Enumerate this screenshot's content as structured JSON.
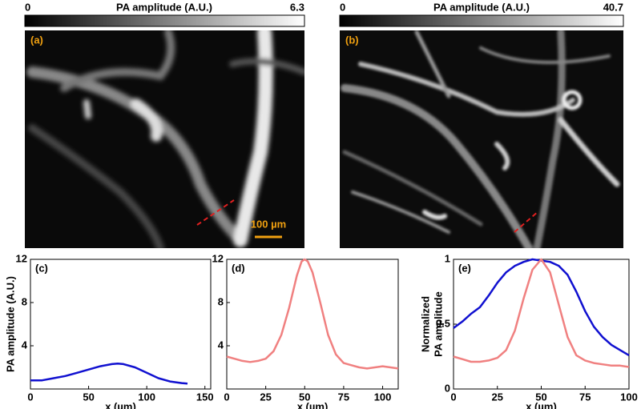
{
  "images": [
    {
      "label": "(a)",
      "colorbar": {
        "title": "PA amplitude (A.U.)",
        "min": 0,
        "max": 6.3
      },
      "scale_bar": "100 µm"
    },
    {
      "label": "(b)",
      "colorbar": {
        "title": "PA amplitude (A.U.)",
        "min": 0,
        "max": 40.7
      }
    }
  ],
  "chart_data": [
    {
      "type": "line",
      "panel_label": "(c)",
      "xlabel": "x (µm)",
      "ylabel": "PA amplitude (A.U.)",
      "xlim": [
        0,
        155
      ],
      "ylim": [
        0,
        12
      ],
      "xticks": [
        0,
        50,
        100,
        150
      ],
      "yticks": [
        4,
        8,
        12
      ],
      "x": [
        0,
        10,
        20,
        30,
        40,
        50,
        60,
        70,
        75,
        80,
        90,
        100,
        110,
        120,
        130,
        135
      ],
      "series": [
        {
          "color": "#1010d0",
          "values": [
            0.8,
            0.8,
            1.0,
            1.2,
            1.5,
            1.8,
            2.1,
            2.3,
            2.35,
            2.3,
            2.0,
            1.5,
            1.0,
            0.7,
            0.55,
            0.5
          ]
        }
      ]
    },
    {
      "type": "line",
      "panel_label": "(d)",
      "xlabel": "x (µm)",
      "xlim": [
        0,
        110
      ],
      "ylim": [
        0,
        12
      ],
      "xticks": [
        0,
        25,
        50,
        75,
        100
      ],
      "yticks": [
        4,
        8,
        12
      ],
      "x": [
        0,
        5,
        10,
        15,
        20,
        25,
        30,
        35,
        40,
        45,
        48,
        50,
        52,
        55,
        60,
        65,
        70,
        75,
        80,
        85,
        90,
        95,
        100,
        105,
        110
      ],
      "series": [
        {
          "color": "#f08080",
          "values": [
            3.0,
            2.8,
            2.6,
            2.5,
            2.6,
            2.8,
            3.5,
            5.0,
            7.5,
            10.5,
            11.8,
            12.0,
            11.8,
            10.8,
            8.0,
            5.0,
            3.2,
            2.4,
            2.2,
            2.0,
            1.9,
            2.0,
            2.1,
            2.0,
            1.9
          ]
        }
      ]
    },
    {
      "type": "line",
      "panel_label": "(e)",
      "xlabel": "x (µm)",
      "ylabel": [
        "Normalized",
        "PA amplitude"
      ],
      "xlim": [
        0,
        100
      ],
      "ylim": [
        0,
        1
      ],
      "xticks": [
        0,
        25,
        50,
        75,
        100
      ],
      "yticks": [
        0,
        0.5,
        1
      ],
      "x": [
        0,
        5,
        10,
        15,
        20,
        25,
        30,
        35,
        40,
        45,
        50,
        55,
        60,
        65,
        70,
        75,
        80,
        85,
        90,
        95,
        100
      ],
      "series": [
        {
          "color": "#1010d0",
          "values": [
            0.47,
            0.52,
            0.58,
            0.63,
            0.72,
            0.82,
            0.9,
            0.95,
            0.98,
            1.0,
            0.99,
            0.98,
            0.95,
            0.88,
            0.75,
            0.6,
            0.48,
            0.4,
            0.34,
            0.3,
            0.26
          ]
        },
        {
          "color": "#f08080",
          "values": [
            0.25,
            0.23,
            0.21,
            0.21,
            0.22,
            0.24,
            0.3,
            0.45,
            0.7,
            0.92,
            1.0,
            0.9,
            0.65,
            0.4,
            0.26,
            0.22,
            0.2,
            0.19,
            0.18,
            0.18,
            0.17
          ]
        }
      ]
    }
  ]
}
